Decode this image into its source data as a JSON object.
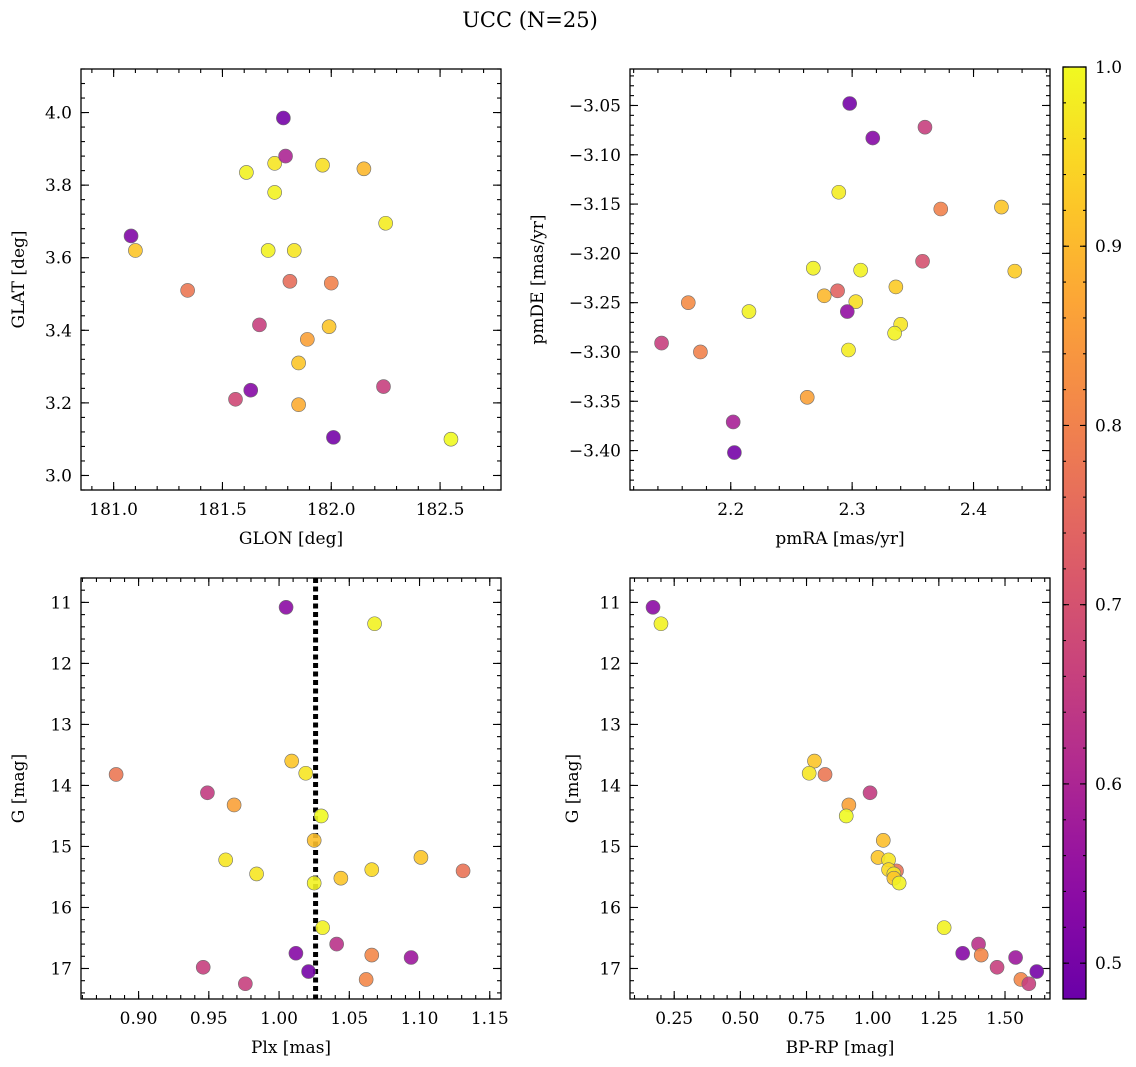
{
  "title": "UCC (N=25)",
  "colorbar": {
    "range": [
      0.48,
      1.0
    ],
    "ticks": [
      0.5,
      0.6,
      0.7,
      0.8,
      0.9,
      1.0
    ],
    "tick_labels": [
      "0.5",
      "0.6",
      "0.7",
      "0.8",
      "0.9",
      "1.0"
    ],
    "colormap": "plasma"
  },
  "chart_data": [
    {
      "type": "scatter",
      "xlabel": "GLON [deg]",
      "ylabel": "GLAT [deg]",
      "xlim": [
        180.85,
        182.78
      ],
      "ylim": [
        2.96,
        4.12
      ],
      "xticks": [
        181.0,
        181.5,
        182.0,
        182.5
      ],
      "xtick_labels": [
        "181.0",
        "181.5",
        "182.0",
        "182.5"
      ],
      "yticks": [
        3.0,
        3.2,
        3.4,
        3.6,
        3.8,
        4.0
      ],
      "ytick_labels": [
        "3.0",
        "3.2",
        "3.4",
        "3.6",
        "3.8",
        "4.0"
      ],
      "invert_y": false,
      "points": [
        {
          "x": 181.08,
          "y": 3.66,
          "c": 0.52
        },
        {
          "x": 181.1,
          "y": 3.62,
          "c": 0.92
        },
        {
          "x": 181.34,
          "y": 3.51,
          "c": 0.78
        },
        {
          "x": 181.56,
          "y": 3.21,
          "c": 0.68
        },
        {
          "x": 181.61,
          "y": 3.835,
          "c": 0.99
        },
        {
          "x": 181.63,
          "y": 3.235,
          "c": 0.53
        },
        {
          "x": 181.67,
          "y": 3.415,
          "c": 0.66
        },
        {
          "x": 181.71,
          "y": 3.62,
          "c": 0.99
        },
        {
          "x": 181.74,
          "y": 3.86,
          "c": 0.97
        },
        {
          "x": 181.74,
          "y": 3.78,
          "c": 0.99
        },
        {
          "x": 181.78,
          "y": 3.985,
          "c": 0.5
        },
        {
          "x": 181.79,
          "y": 3.88,
          "c": 0.6
        },
        {
          "x": 181.81,
          "y": 3.535,
          "c": 0.76
        },
        {
          "x": 181.83,
          "y": 3.62,
          "c": 0.97
        },
        {
          "x": 181.85,
          "y": 3.31,
          "c": 0.92
        },
        {
          "x": 181.85,
          "y": 3.195,
          "c": 0.88
        },
        {
          "x": 181.89,
          "y": 3.375,
          "c": 0.86
        },
        {
          "x": 181.96,
          "y": 3.855,
          "c": 0.96
        },
        {
          "x": 181.99,
          "y": 3.41,
          "c": 0.92
        },
        {
          "x": 182.0,
          "y": 3.53,
          "c": 0.8
        },
        {
          "x": 182.01,
          "y": 3.105,
          "c": 0.5
        },
        {
          "x": 182.15,
          "y": 3.845,
          "c": 0.9
        },
        {
          "x": 182.24,
          "y": 3.245,
          "c": 0.66
        },
        {
          "x": 182.25,
          "y": 3.695,
          "c": 0.98
        },
        {
          "x": 182.55,
          "y": 3.1,
          "c": 1.0
        }
      ]
    },
    {
      "type": "scatter",
      "xlabel": "pmRA [mas/yr]",
      "ylabel": "pmDE [mas/yr]",
      "xlim": [
        2.117,
        2.463
      ],
      "ylim": [
        -3.44,
        -3.013
      ],
      "xticks": [
        2.2,
        2.3,
        2.4
      ],
      "xtick_labels": [
        "2.2",
        "2.3",
        "2.4"
      ],
      "yticks": [
        -3.4,
        -3.35,
        -3.3,
        -3.25,
        -3.2,
        -3.15,
        -3.1,
        -3.05
      ],
      "ytick_labels": [
        "−3.40",
        "−3.35",
        "−3.30",
        "−3.25",
        "−3.20",
        "−3.15",
        "−3.10",
        "−3.05"
      ],
      "invert_y": false,
      "points": [
        {
          "x": 2.298,
          "y": -3.048,
          "c": 0.5
        },
        {
          "x": 2.36,
          "y": -3.072,
          "c": 0.66
        },
        {
          "x": 2.317,
          "y": -3.083,
          "c": 0.53
        },
        {
          "x": 2.289,
          "y": -3.138,
          "c": 0.98
        },
        {
          "x": 2.373,
          "y": -3.155,
          "c": 0.8
        },
        {
          "x": 2.423,
          "y": -3.153,
          "c": 0.92
        },
        {
          "x": 2.358,
          "y": -3.208,
          "c": 0.7
        },
        {
          "x": 2.434,
          "y": -3.218,
          "c": 0.93
        },
        {
          "x": 2.268,
          "y": -3.215,
          "c": 0.99
        },
        {
          "x": 2.307,
          "y": -3.217,
          "c": 0.99
        },
        {
          "x": 2.336,
          "y": -3.234,
          "c": 0.93
        },
        {
          "x": 2.288,
          "y": -3.238,
          "c": 0.74
        },
        {
          "x": 2.277,
          "y": -3.243,
          "c": 0.9
        },
        {
          "x": 2.303,
          "y": -3.249,
          "c": 0.96
        },
        {
          "x": 2.165,
          "y": -3.25,
          "c": 0.82
        },
        {
          "x": 2.215,
          "y": -3.259,
          "c": 0.99
        },
        {
          "x": 2.296,
          "y": -3.259,
          "c": 0.55
        },
        {
          "x": 2.34,
          "y": -3.272,
          "c": 0.97
        },
        {
          "x": 2.335,
          "y": -3.281,
          "c": 0.99
        },
        {
          "x": 2.143,
          "y": -3.291,
          "c": 0.66
        },
        {
          "x": 2.297,
          "y": -3.298,
          "c": 0.98
        },
        {
          "x": 2.175,
          "y": -3.3,
          "c": 0.8
        },
        {
          "x": 2.263,
          "y": -3.346,
          "c": 0.86
        },
        {
          "x": 2.202,
          "y": -3.371,
          "c": 0.59
        },
        {
          "x": 2.203,
          "y": -3.402,
          "c": 0.5
        }
      ]
    },
    {
      "type": "scatter",
      "xlabel": "Plx [mas]",
      "ylabel": "G [mag]",
      "xlim": [
        0.859,
        1.158
      ],
      "ylim": [
        10.6,
        17.5
      ],
      "xticks": [
        0.9,
        0.95,
        1.0,
        1.05,
        1.1,
        1.15
      ],
      "xtick_labels": [
        "0.90",
        "0.95",
        "1.00",
        "1.05",
        "1.10",
        "1.15"
      ],
      "yticks": [
        11,
        12,
        13,
        14,
        15,
        16,
        17
      ],
      "ytick_labels": [
        "11",
        "12",
        "13",
        "14",
        "15",
        "16",
        "17"
      ],
      "invert_y": true,
      "vline": {
        "x": 1.026,
        "style": "dotted"
      },
      "points": [
        {
          "x": 1.005,
          "y": 11.08,
          "c": 0.54
        },
        {
          "x": 1.068,
          "y": 11.35,
          "c": 0.99
        },
        {
          "x": 1.009,
          "y": 13.6,
          "c": 0.92
        },
        {
          "x": 1.019,
          "y": 13.8,
          "c": 0.97
        },
        {
          "x": 0.884,
          "y": 13.82,
          "c": 0.78
        },
        {
          "x": 0.949,
          "y": 14.12,
          "c": 0.65
        },
        {
          "x": 0.968,
          "y": 14.32,
          "c": 0.86
        },
        {
          "x": 1.03,
          "y": 14.5,
          "c": 1.0
        },
        {
          "x": 1.025,
          "y": 14.9,
          "c": 0.91
        },
        {
          "x": 1.101,
          "y": 15.18,
          "c": 0.92
        },
        {
          "x": 0.962,
          "y": 15.22,
          "c": 0.97
        },
        {
          "x": 1.131,
          "y": 15.4,
          "c": 0.77
        },
        {
          "x": 1.066,
          "y": 15.38,
          "c": 0.95
        },
        {
          "x": 0.984,
          "y": 15.45,
          "c": 0.97
        },
        {
          "x": 1.044,
          "y": 15.52,
          "c": 0.92
        },
        {
          "x": 1.025,
          "y": 15.6,
          "c": 0.99
        },
        {
          "x": 1.031,
          "y": 16.33,
          "c": 0.99
        },
        {
          "x": 1.041,
          "y": 16.6,
          "c": 0.63
        },
        {
          "x": 1.012,
          "y": 16.75,
          "c": 0.53
        },
        {
          "x": 1.066,
          "y": 16.78,
          "c": 0.81
        },
        {
          "x": 1.094,
          "y": 16.82,
          "c": 0.57
        },
        {
          "x": 0.946,
          "y": 16.98,
          "c": 0.66
        },
        {
          "x": 1.021,
          "y": 17.05,
          "c": 0.5
        },
        {
          "x": 1.062,
          "y": 17.18,
          "c": 0.81
        },
        {
          "x": 0.976,
          "y": 17.25,
          "c": 0.66
        }
      ]
    },
    {
      "type": "scatter",
      "xlabel": "BP-RP [mag]",
      "ylabel": "G [mag]",
      "xlim": [
        0.083,
        1.67
      ],
      "ylim": [
        10.6,
        17.5
      ],
      "xticks": [
        0.25,
        0.5,
        0.75,
        1.0,
        1.25,
        1.5
      ],
      "xtick_labels": [
        "0.25",
        "0.50",
        "0.75",
        "1.00",
        "1.25",
        "1.50"
      ],
      "yticks": [
        11,
        12,
        13,
        14,
        15,
        16,
        17
      ],
      "ytick_labels": [
        "11",
        "12",
        "13",
        "14",
        "15",
        "16",
        "17"
      ],
      "invert_y": true,
      "points": [
        {
          "x": 0.17,
          "y": 11.08,
          "c": 0.54
        },
        {
          "x": 0.2,
          "y": 11.35,
          "c": 0.99
        },
        {
          "x": 0.78,
          "y": 13.6,
          "c": 0.92
        },
        {
          "x": 0.76,
          "y": 13.8,
          "c": 0.97
        },
        {
          "x": 0.82,
          "y": 13.82,
          "c": 0.78
        },
        {
          "x": 0.99,
          "y": 14.12,
          "c": 0.65
        },
        {
          "x": 0.91,
          "y": 14.32,
          "c": 0.86
        },
        {
          "x": 0.9,
          "y": 14.5,
          "c": 1.0
        },
        {
          "x": 1.04,
          "y": 14.9,
          "c": 0.91
        },
        {
          "x": 1.02,
          "y": 15.18,
          "c": 0.92
        },
        {
          "x": 1.06,
          "y": 15.22,
          "c": 0.97
        },
        {
          "x": 1.09,
          "y": 15.4,
          "c": 0.77
        },
        {
          "x": 1.06,
          "y": 15.38,
          "c": 0.95
        },
        {
          "x": 1.08,
          "y": 15.45,
          "c": 0.97
        },
        {
          "x": 1.08,
          "y": 15.52,
          "c": 0.92
        },
        {
          "x": 1.1,
          "y": 15.6,
          "c": 0.99
        },
        {
          "x": 1.27,
          "y": 16.33,
          "c": 0.99
        },
        {
          "x": 1.4,
          "y": 16.6,
          "c": 0.63
        },
        {
          "x": 1.34,
          "y": 16.75,
          "c": 0.53
        },
        {
          "x": 1.41,
          "y": 16.78,
          "c": 0.81
        },
        {
          "x": 1.54,
          "y": 16.82,
          "c": 0.57
        },
        {
          "x": 1.47,
          "y": 16.98,
          "c": 0.66
        },
        {
          "x": 1.62,
          "y": 17.05,
          "c": 0.5
        },
        {
          "x": 1.56,
          "y": 17.18,
          "c": 0.81
        },
        {
          "x": 1.59,
          "y": 17.25,
          "c": 0.66
        }
      ]
    }
  ]
}
